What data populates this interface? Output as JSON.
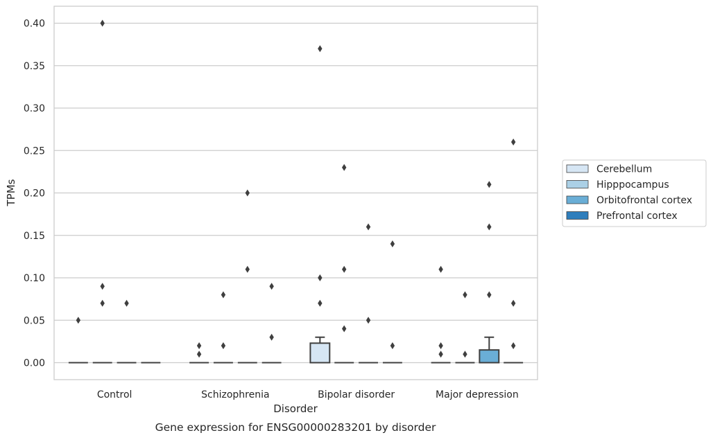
{
  "chart_data": {
    "type": "box",
    "title": "",
    "caption": "Gene expression for ENSG00000283201 by disorder",
    "xlabel": "Disorder",
    "ylabel": "TPMs",
    "ylim": [
      -0.02,
      0.42
    ],
    "yticks": [
      "0.00",
      "0.05",
      "0.10",
      "0.15",
      "0.20",
      "0.25",
      "0.30",
      "0.35",
      "0.40"
    ],
    "grid": "horizontal",
    "legend_position": "right",
    "categories": [
      "Control",
      "Schizophrenia",
      "Bipolar disorder",
      "Major depression"
    ],
    "series": [
      {
        "name": "Cerebellum",
        "color": "#d6e6f4",
        "boxes": [
          {
            "q1": 0,
            "median": 0,
            "q3": 0,
            "whisker_low": 0,
            "whisker_high": 0,
            "outliers": [
              0.05
            ]
          },
          {
            "q1": 0,
            "median": 0,
            "q3": 0,
            "whisker_low": 0,
            "whisker_high": 0,
            "outliers": [
              0.01,
              0.02
            ]
          },
          {
            "q1": 0,
            "median": 0,
            "q3": 0.023,
            "whisker_low": 0,
            "whisker_high": 0.03,
            "outliers": [
              0.07,
              0.1,
              0.37
            ]
          },
          {
            "q1": 0,
            "median": 0,
            "q3": 0,
            "whisker_low": 0,
            "whisker_high": 0,
            "outliers": [
              0.01,
              0.02,
              0.11
            ]
          }
        ]
      },
      {
        "name": "Hipppocampus",
        "color": "#abd0e6",
        "boxes": [
          {
            "q1": 0,
            "median": 0,
            "q3": 0,
            "whisker_low": 0,
            "whisker_high": 0,
            "outliers": [
              0.07,
              0.09,
              0.4
            ]
          },
          {
            "q1": 0,
            "median": 0,
            "q3": 0,
            "whisker_low": 0,
            "whisker_high": 0,
            "outliers": [
              0.02,
              0.08
            ]
          },
          {
            "q1": 0,
            "median": 0,
            "q3": 0,
            "whisker_low": 0,
            "whisker_high": 0,
            "outliers": [
              0.04,
              0.11,
              0.23
            ]
          },
          {
            "q1": 0,
            "median": 0,
            "q3": 0,
            "whisker_low": 0,
            "whisker_high": 0,
            "outliers": [
              0.01,
              0.08
            ]
          }
        ]
      },
      {
        "name": "Orbitofrontal cortex",
        "color": "#6aaed6",
        "boxes": [
          {
            "q1": 0,
            "median": 0,
            "q3": 0,
            "whisker_low": 0,
            "whisker_high": 0,
            "outliers": [
              0.07
            ]
          },
          {
            "q1": 0,
            "median": 0,
            "q3": 0,
            "whisker_low": 0,
            "whisker_high": 0,
            "outliers": [
              0.11,
              0.2
            ]
          },
          {
            "q1": 0,
            "median": 0,
            "q3": 0,
            "whisker_low": 0,
            "whisker_high": 0,
            "outliers": [
              0.05,
              0.16
            ]
          },
          {
            "q1": 0,
            "median": 0,
            "q3": 0.015,
            "whisker_low": 0,
            "whisker_high": 0.03,
            "outliers": [
              0.08,
              0.16,
              0.21
            ]
          }
        ]
      },
      {
        "name": "Prefrontal cortex",
        "color": "#2e7ebc",
        "boxes": [
          {
            "q1": 0,
            "median": 0,
            "q3": 0,
            "whisker_low": 0,
            "whisker_high": 0,
            "outliers": []
          },
          {
            "q1": 0,
            "median": 0,
            "q3": 0,
            "whisker_low": 0,
            "whisker_high": 0,
            "outliers": [
              0.03,
              0.09
            ]
          },
          {
            "q1": 0,
            "median": 0,
            "q3": 0,
            "whisker_low": 0,
            "whisker_high": 0,
            "outliers": [
              0.02,
              0.14
            ]
          },
          {
            "q1": 0,
            "median": 0,
            "q3": 0,
            "whisker_low": 0,
            "whisker_high": 0,
            "outliers": [
              0.02,
              0.07,
              0.26
            ]
          }
        ]
      }
    ]
  }
}
